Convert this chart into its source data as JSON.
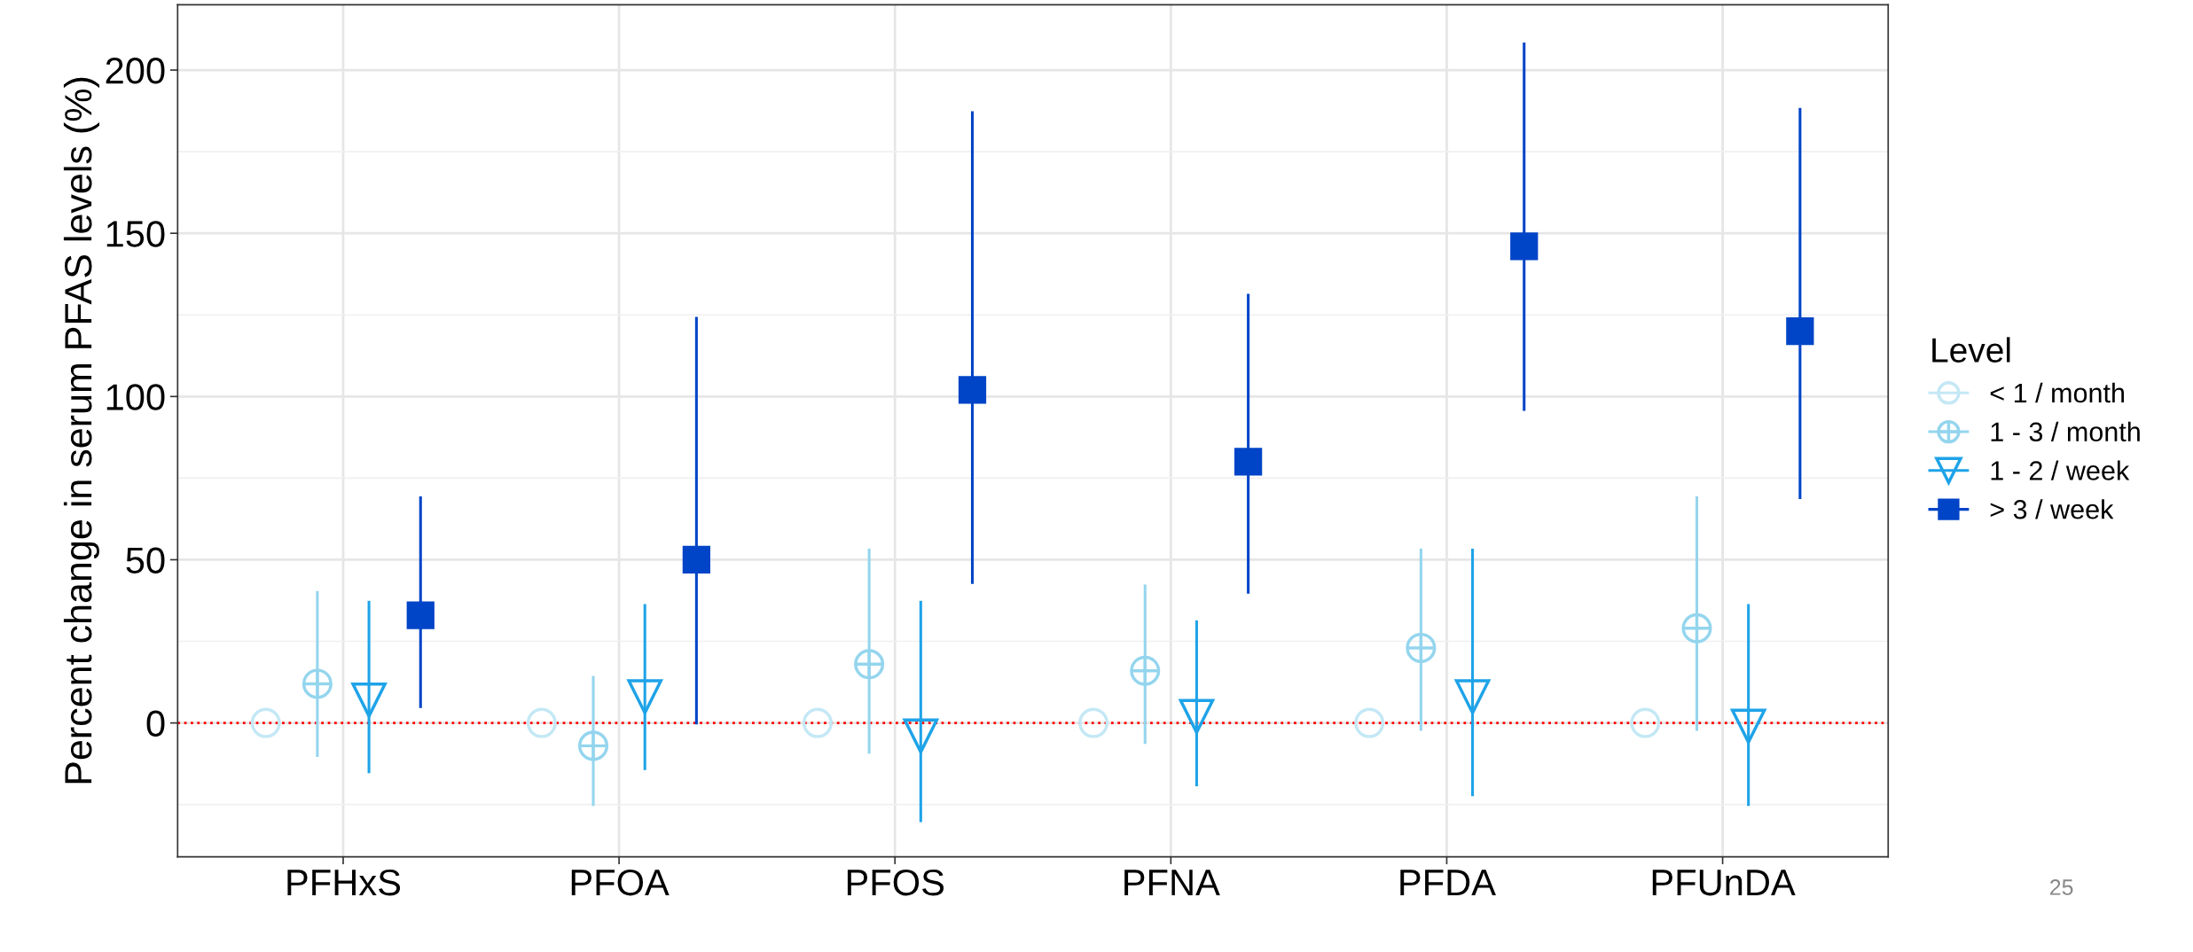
{
  "chart_data": {
    "type": "scatter",
    "ylabel": "Percent change in serum PFAS levels (%)",
    "legend_title": "Level",
    "legend": "right",
    "categories": [
      "PFHxS",
      "PFOA",
      "PFOS",
      "PFNA",
      "PFDA",
      "PFUnDA"
    ],
    "series": [
      {
        "name": "< 1 / month",
        "color": "#c4e8f5",
        "marker": "circle",
        "values": [
          0,
          0,
          0,
          0,
          0,
          0
        ]
      },
      {
        "name": "1 - 3 / month",
        "color": "#94d5ee",
        "marker": "circle",
        "values": [
          12,
          -7,
          18,
          16,
          23,
          29
        ],
        "errors": [
          [
            -10,
            40
          ],
          [
            -25,
            14
          ],
          [
            -9,
            53
          ],
          [
            -6,
            42
          ],
          [
            -2,
            53
          ],
          [
            -2,
            69
          ]
        ]
      },
      {
        "name": "1 - 2 / week",
        "color": "#1ea3e8",
        "marker": "triangle",
        "values": [
          7,
          8,
          -4,
          2,
          8,
          -1
        ],
        "errors": [
          [
            -15,
            37
          ],
          [
            -14,
            36
          ],
          [
            -30,
            37
          ],
          [
            -19,
            31
          ],
          [
            -22,
            53
          ],
          [
            -25,
            36
          ]
        ]
      },
      {
        "name": "> 3 / week",
        "color": "#0044c8",
        "marker": "square",
        "values": [
          33,
          50,
          102,
          80,
          146,
          120
        ],
        "errors": [
          [
            5,
            69
          ],
          [
            0,
            124
          ],
          [
            43,
            187
          ],
          [
            40,
            131
          ],
          [
            96,
            208
          ],
          [
            69,
            188
          ]
        ]
      }
    ],
    "ylim": [
      -41,
      220
    ],
    "yticks": [
      0,
      50,
      100,
      150,
      200
    ],
    "grid": true,
    "ref_lines": [
      {
        "axis": "y",
        "value": 0,
        "color": "#ff0000",
        "line_style": "dotted"
      }
    ],
    "annotations": [
      "25"
    ]
  }
}
